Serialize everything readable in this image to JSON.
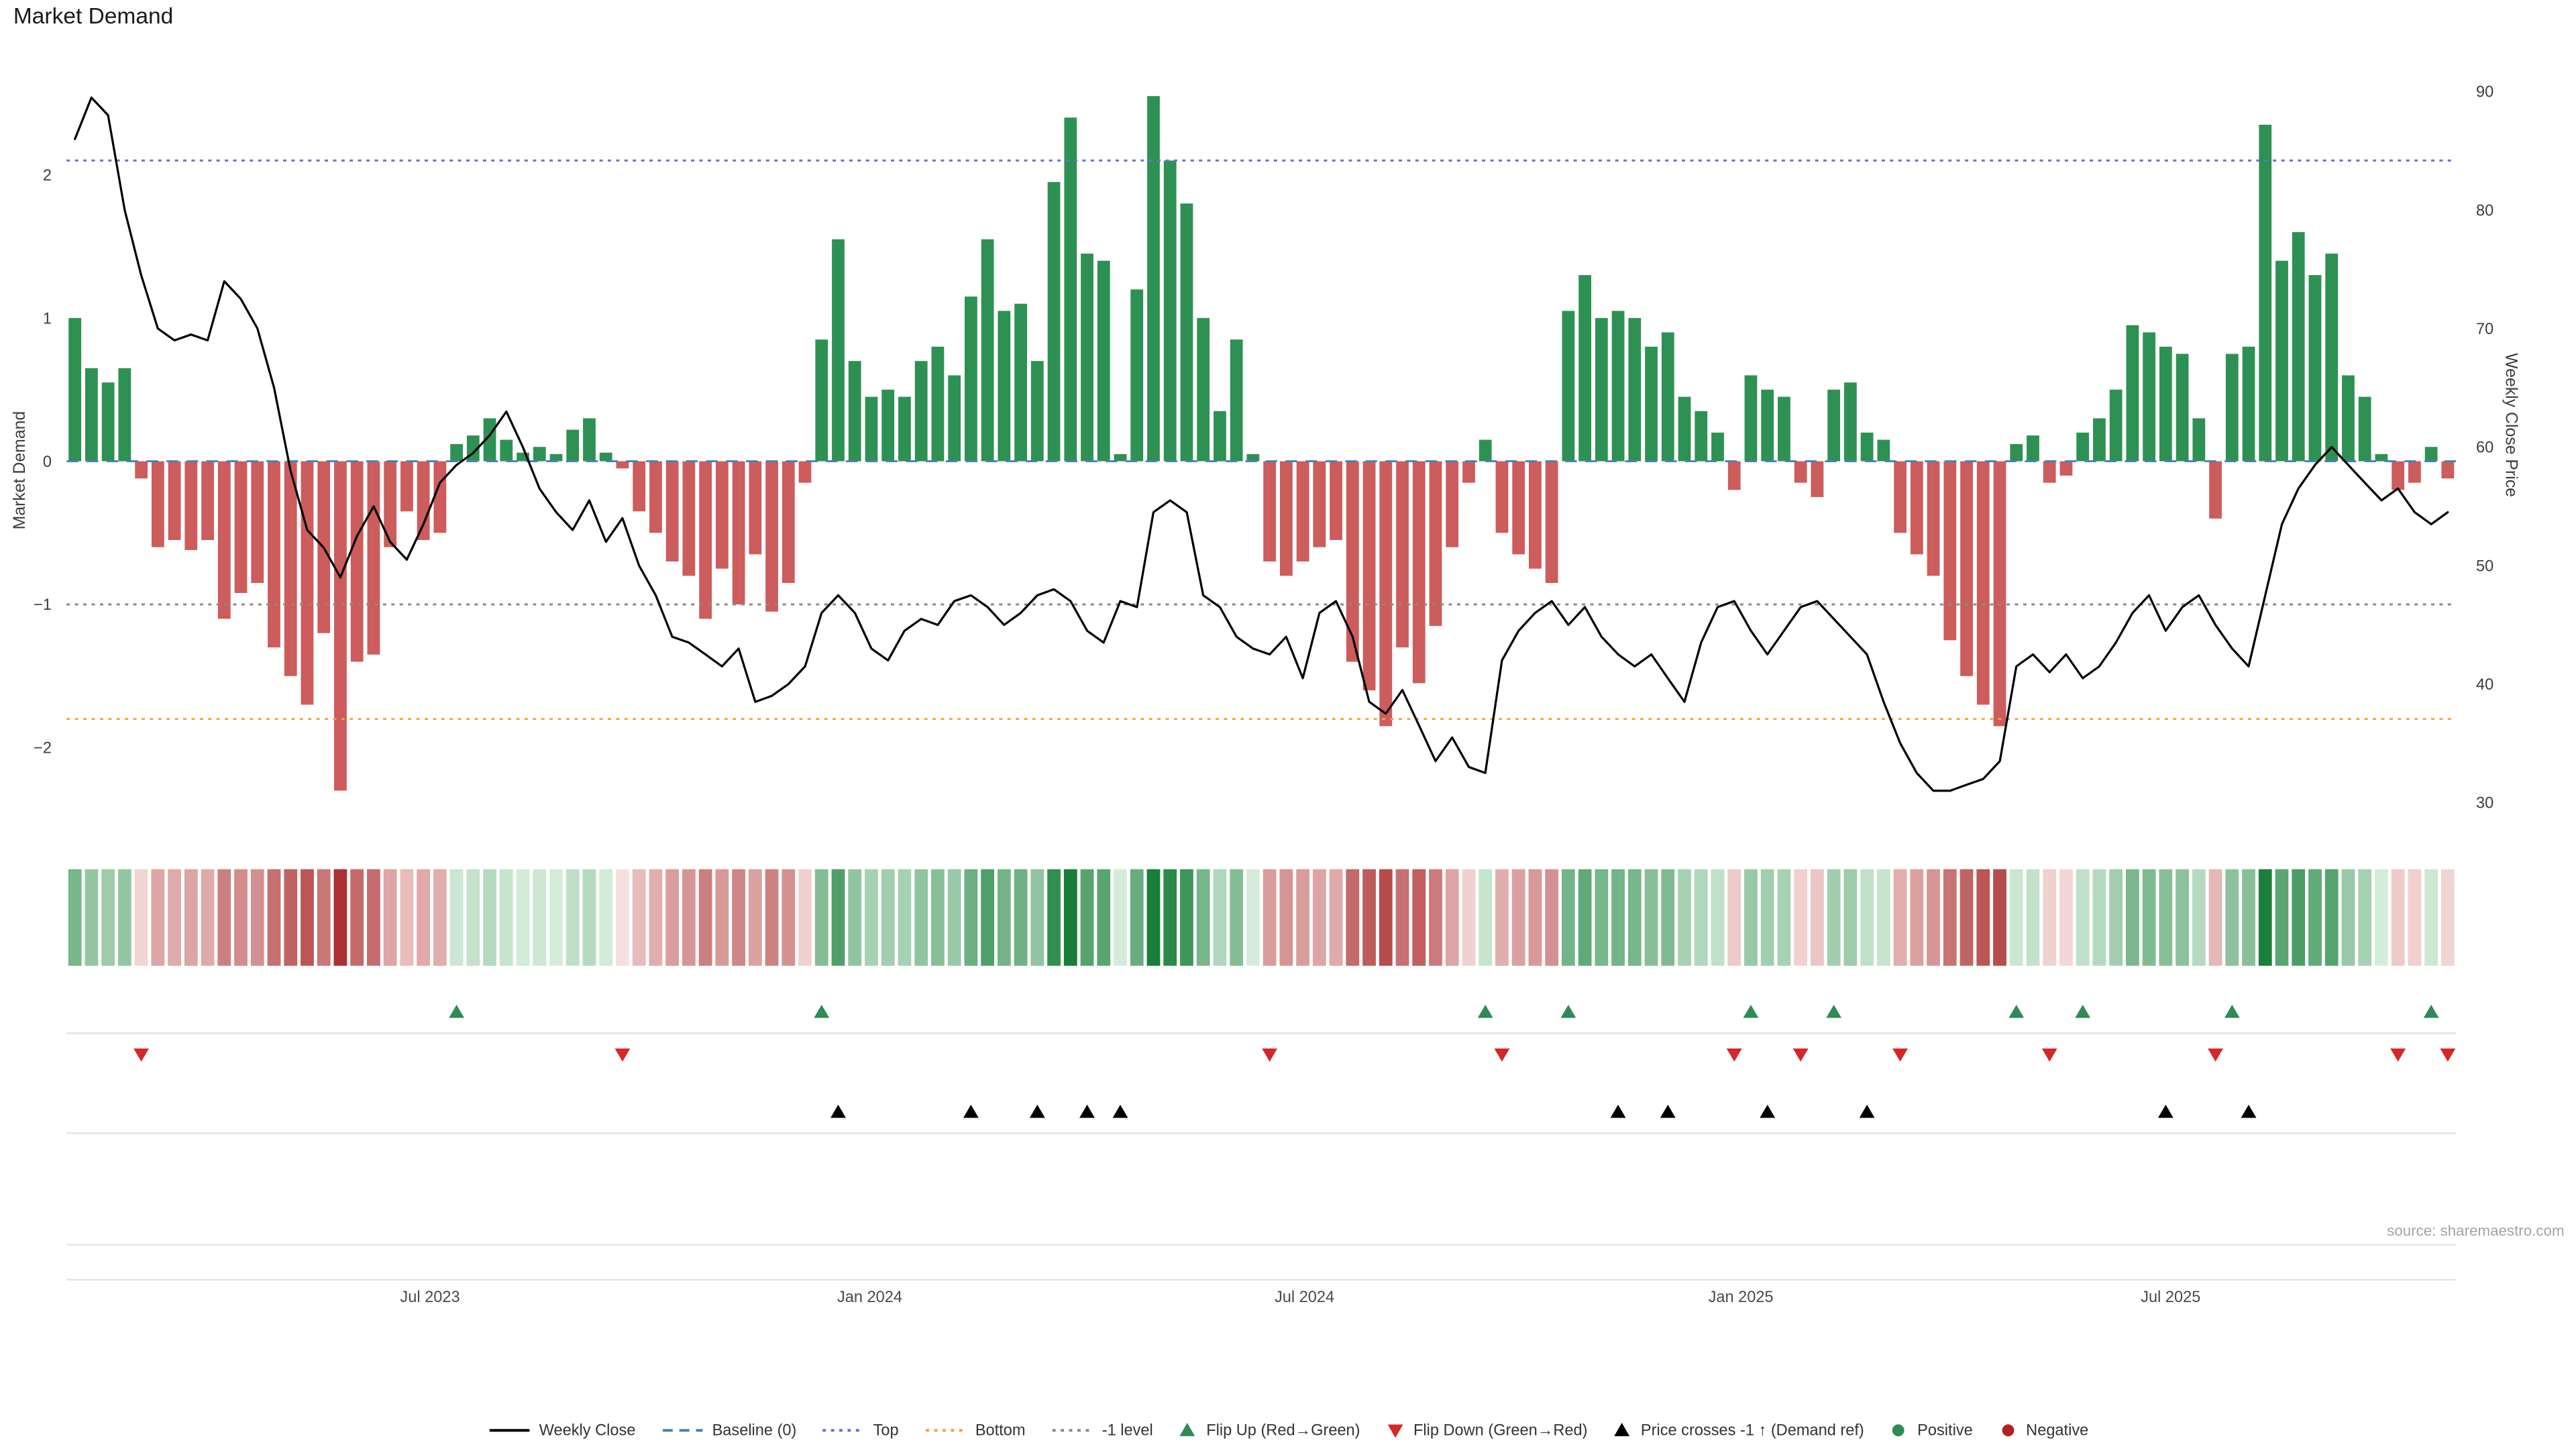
{
  "title": "Market Demand",
  "source_note": "source: sharemaestro.com",
  "axes": {
    "left_label": "Market Demand",
    "right_label": "Weekly Close Price",
    "left_ticks": [
      {
        "label": "2",
        "value": 2
      },
      {
        "label": "1",
        "value": 1
      },
      {
        "label": "0",
        "value": 0
      },
      {
        "label": "−1",
        "value": -1
      },
      {
        "label": "−2",
        "value": -2
      }
    ],
    "right_ticks": [
      {
        "label": "90",
        "value": 90
      },
      {
        "label": "80",
        "value": 80
      },
      {
        "label": "70",
        "value": 70
      },
      {
        "label": "60",
        "value": 60
      },
      {
        "label": "50",
        "value": 50
      },
      {
        "label": "40",
        "value": 40
      },
      {
        "label": "30",
        "value": 30
      }
    ],
    "x_ticks": [
      {
        "label": "Jul 2023",
        "index": 21.4
      },
      {
        "label": "Jan 2024",
        "index": 47.9
      },
      {
        "label": "Jul 2024",
        "index": 74.1
      },
      {
        "label": "Jan 2025",
        "index": 100.4
      },
      {
        "label": "Jul 2025",
        "index": 126.3
      }
    ]
  },
  "colors": {
    "positive": "#2e9154",
    "negative": "#cd5c5c",
    "price_line": "#000000",
    "baseline": "#4682b4",
    "top_line": "#6673d0",
    "bottom_line": "#f0a23c",
    "minus_one_line": "#8a8a8a",
    "flip_up": "#2e8b57",
    "flip_down": "#d62728",
    "price_cross": "#000000",
    "grid": "#e3e3e3"
  },
  "chart_data": {
    "type": "combo",
    "x_unit": "weekly",
    "left_ylim": [
      -2.6,
      2.9
    ],
    "right_ylim": [
      30,
      90
    ],
    "grid": "off",
    "legend_position": "bottom-center",
    "reference_levels": {
      "baseline": 0,
      "top": 2.1,
      "bottom": -1.8,
      "minus_one": -1
    },
    "series": [
      {
        "name": "Market Demand",
        "type": "bar",
        "axis": "left",
        "values": [
          1.0,
          0.65,
          0.55,
          0.65,
          -0.12,
          -0.6,
          -0.55,
          -0.62,
          -0.55,
          -1.1,
          -0.92,
          -0.85,
          -1.3,
          -1.5,
          -1.7,
          -1.2,
          -2.3,
          -1.4,
          -1.35,
          -0.6,
          -0.35,
          -0.55,
          -0.5,
          0.12,
          0.18,
          0.3,
          0.15,
          0.06,
          0.1,
          0.05,
          0.22,
          0.3,
          0.06,
          -0.05,
          -0.35,
          -0.5,
          -0.7,
          -0.8,
          -1.1,
          -0.75,
          -1.0,
          -0.65,
          -1.05,
          -0.85,
          -0.15,
          0.85,
          1.55,
          0.7,
          0.45,
          0.5,
          0.45,
          0.7,
          0.8,
          0.6,
          1.15,
          1.55,
          1.05,
          1.1,
          0.7,
          1.95,
          2.4,
          1.45,
          1.4,
          0.05,
          1.2,
          2.55,
          2.1,
          1.8,
          1.0,
          0.35,
          0.85,
          0.05,
          -0.7,
          -0.8,
          -0.7,
          -0.6,
          -0.55,
          -1.4,
          -1.6,
          -1.85,
          -1.3,
          -1.55,
          -1.15,
          -0.6,
          -0.15,
          0.15,
          -0.5,
          -0.65,
          -0.75,
          -0.85,
          1.05,
          1.3,
          1.0,
          1.05,
          1.0,
          0.8,
          0.9,
          0.45,
          0.35,
          0.2,
          -0.2,
          0.6,
          0.5,
          0.45,
          -0.15,
          -0.25,
          0.5,
          0.55,
          0.2,
          0.15,
          -0.5,
          -0.65,
          -0.8,
          -1.25,
          -1.5,
          -1.7,
          -1.85,
          0.12,
          0.18,
          -0.15,
          -0.1,
          0.2,
          0.3,
          0.5,
          0.95,
          0.9,
          0.8,
          0.75,
          0.3,
          -0.4,
          0.75,
          0.8,
          2.35,
          1.4,
          1.6,
          1.3,
          1.45,
          0.6,
          0.45,
          0.05,
          -0.2,
          -0.15,
          0.1,
          -0.12
        ]
      },
      {
        "name": "Weekly Close",
        "type": "line",
        "axis": "right",
        "values": [
          86,
          89.5,
          88,
          80,
          74.5,
          70,
          69,
          69.5,
          69,
          74,
          72.5,
          70,
          65,
          58,
          53,
          51.5,
          49,
          52.5,
          55,
          52,
          50.5,
          53.5,
          57,
          58.5,
          59.5,
          61,
          63,
          60,
          56.5,
          54.5,
          53,
          55.5,
          52,
          54,
          50,
          47.5,
          44,
          43.5,
          42.5,
          41.5,
          43,
          38.5,
          39,
          40,
          41.5,
          46,
          47.5,
          46,
          43,
          42,
          44.5,
          45.5,
          45,
          47,
          47.5,
          46.5,
          45,
          46,
          47.5,
          48,
          47,
          44.5,
          43.5,
          47,
          46.5,
          54.5,
          55.5,
          54.5,
          47.5,
          46.5,
          44,
          43,
          42.5,
          44,
          40.5,
          46,
          47,
          44,
          38.5,
          37.5,
          39.5,
          36.5,
          33.5,
          35.5,
          33,
          32.5,
          42,
          44.5,
          46,
          47,
          45,
          46.5,
          44,
          42.5,
          41.5,
          42.5,
          40.5,
          38.5,
          43.5,
          46.5,
          47,
          44.5,
          42.5,
          44.5,
          46.5,
          47,
          45.5,
          44,
          42.5,
          38.5,
          35,
          32.5,
          31,
          31,
          31.5,
          32,
          33.5,
          41.5,
          42.5,
          41,
          42.5,
          40.5,
          41.5,
          43.5,
          46,
          47.5,
          44.5,
          46.5,
          47.5,
          45,
          43,
          41.5,
          47.5,
          53.5,
          56.5,
          58.5,
          60,
          58.5,
          57,
          55.5,
          56.5,
          54.5,
          53.5,
          54.5
        ]
      }
    ],
    "markers": {
      "flip_up_indices": [
        23,
        45,
        85,
        90,
        101,
        106,
        117,
        121,
        130,
        142
      ],
      "flip_down_indices": [
        4,
        33,
        72,
        86,
        100,
        104,
        110,
        119,
        129,
        140,
        143
      ],
      "price_cross_indices": [
        46,
        54,
        58,
        61,
        63,
        93,
        96,
        102,
        108,
        126,
        131
      ]
    },
    "heat_strip": {
      "derived_from": "Market Demand bar values",
      "position": "below main chart"
    }
  },
  "legend": [
    {
      "label": "Weekly Close",
      "symbol": "line",
      "color": "#000000"
    },
    {
      "label": "Baseline (0)",
      "symbol": "dashed-line",
      "color": "#4682b4"
    },
    {
      "label": "Top",
      "symbol": "dotted-line",
      "color": "#6673d0"
    },
    {
      "label": "Bottom",
      "symbol": "dotted-line",
      "color": "#f0a23c"
    },
    {
      "label": "-1 level",
      "symbol": "dotted-line",
      "color": "#8a8a8a"
    },
    {
      "label": "Flip Up (Red→Green)",
      "symbol": "triangle-up",
      "color": "#2e8b57"
    },
    {
      "label": "Flip Down (Green→Red)",
      "symbol": "triangle-down",
      "color": "#d62728"
    },
    {
      "label": "Price crosses -1 ↑ (Demand ref)",
      "symbol": "triangle-up",
      "color": "#000000"
    },
    {
      "label": "Positive",
      "symbol": "circle",
      "color": "#2e8b57"
    },
    {
      "label": "Negative",
      "symbol": "circle",
      "color": "#b22222"
    }
  ]
}
